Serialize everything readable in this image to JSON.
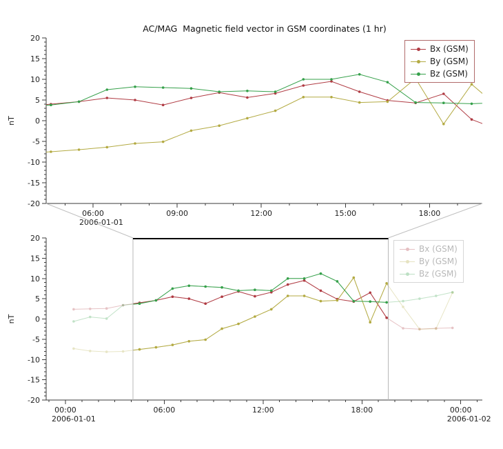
{
  "page": {
    "background": "#ffffff"
  },
  "colors": {
    "axis": "#3a3a3a",
    "tick_label": "#222222",
    "title": "#111111",
    "selection_line": "#b8b8b8",
    "selection_top": "#000000",
    "connector": "#c0c0c0",
    "legend_border_top": "#b06a6a",
    "legend_border_bottom": "#d6d6d6"
  },
  "legend": {
    "entries": [
      "Bx (GSM)",
      "By (GSM)",
      "Bz (GSM)"
    ]
  },
  "chart_data": [
    {
      "type": "line",
      "title": "AC/MAG  Magnetic field vector in GSM coordinates (1 hr)",
      "ylabel": "nT",
      "xlim": [
        4.33,
        19.88
      ],
      "ylim": [
        -20,
        20
      ],
      "yticks": [
        -20,
        -15,
        -10,
        -5,
        0,
        5,
        10,
        15,
        20
      ],
      "xticks": [
        {
          "h": 6,
          "label": "06:00",
          "date": "2006-01-01"
        },
        {
          "h": 9,
          "label": "09:00"
        },
        {
          "h": 12,
          "label": "12:00"
        },
        {
          "h": 15,
          "label": "15:00"
        },
        {
          "h": 18,
          "label": "18:00"
        }
      ],
      "x_hours": [
        0.5,
        1.5,
        2.5,
        3.5,
        4.5,
        5.5,
        6.5,
        7.5,
        8.5,
        9.5,
        10.5,
        11.5,
        12.5,
        13.5,
        14.5,
        15.5,
        16.5,
        17.5,
        18.5,
        19.5,
        20.5,
        21.5,
        22.5,
        23.5
      ],
      "series": [
        {
          "key": "bx",
          "name": "Bx (GSM)",
          "color": "#b03b43",
          "values": [
            2.4,
            2.5,
            2.6,
            3.4,
            4.0,
            4.6,
            5.5,
            5.0,
            3.8,
            5.5,
            6.8,
            5.6,
            6.6,
            8.5,
            9.5,
            7.0,
            4.9,
            4.3,
            6.5,
            0.3,
            -2.3,
            -2.5,
            -2.3,
            -2.2
          ]
        },
        {
          "key": "by",
          "name": "By (GSM)",
          "color": "#b3aa42",
          "values": [
            -7.3,
            -7.9,
            -8.1,
            -8.0,
            -7.5,
            -7.0,
            -6.4,
            -5.5,
            -5.1,
            -2.4,
            -1.2,
            0.6,
            2.4,
            5.7,
            5.7,
            4.4,
            4.6,
            10.2,
            -0.8,
            8.8,
            3.0,
            -2.5,
            -2.4,
            6.5
          ]
        },
        {
          "key": "bz",
          "name": "Bz (GSM)",
          "color": "#35a04a",
          "values": [
            -0.6,
            0.5,
            0.1,
            3.4,
            3.8,
            4.6,
            7.5,
            8.2,
            8.0,
            7.8,
            7.0,
            7.2,
            7.0,
            10.0,
            10.0,
            11.2,
            9.3,
            4.4,
            4.3,
            4.1,
            4.4,
            5.0,
            5.7,
            6.6
          ]
        }
      ]
    },
    {
      "type": "line",
      "title": "",
      "ylabel": "nT",
      "xlim": [
        -1.17,
        25.31
      ],
      "ylim": [
        -20,
        20
      ],
      "yticks": [
        -20,
        -15,
        -10,
        -5,
        0,
        5,
        10,
        15,
        20
      ],
      "xticks": [
        {
          "h": 0,
          "label": "00:00",
          "date": "2006-01-01"
        },
        {
          "h": 6,
          "label": "06:00"
        },
        {
          "h": 12,
          "label": "12:00"
        },
        {
          "h": 18,
          "label": "18:00"
        },
        {
          "h": 24,
          "label": "00:00",
          "date": "2006-01-02"
        }
      ],
      "faded_opacity": 0.3,
      "selection": {
        "from": 4.1,
        "to": 19.6
      },
      "x_hours": [
        0.5,
        1.5,
        2.5,
        3.5,
        4.5,
        5.5,
        6.5,
        7.5,
        8.5,
        9.5,
        10.5,
        11.5,
        12.5,
        13.5,
        14.5,
        15.5,
        16.5,
        17.5,
        18.5,
        19.5,
        20.5,
        21.5,
        22.5,
        23.5
      ],
      "series": [
        {
          "key": "bx",
          "name": "Bx (GSM)",
          "color": "#b03b43",
          "values": [
            2.4,
            2.5,
            2.6,
            3.4,
            4.0,
            4.6,
            5.5,
            5.0,
            3.8,
            5.5,
            6.8,
            5.6,
            6.6,
            8.5,
            9.5,
            7.0,
            4.9,
            4.3,
            6.5,
            0.3,
            -2.3,
            -2.5,
            -2.3,
            -2.2
          ]
        },
        {
          "key": "by",
          "name": "By (GSM)",
          "color": "#b3aa42",
          "values": [
            -7.3,
            -7.9,
            -8.1,
            -8.0,
            -7.5,
            -7.0,
            -6.4,
            -5.5,
            -5.1,
            -2.4,
            -1.2,
            0.6,
            2.4,
            5.7,
            5.7,
            4.4,
            4.6,
            10.2,
            -0.8,
            8.8,
            3.0,
            -2.5,
            -2.4,
            6.5
          ]
        },
        {
          "key": "bz",
          "name": "Bz (GSM)",
          "color": "#35a04a",
          "values": [
            -0.6,
            0.5,
            0.1,
            3.4,
            3.8,
            4.6,
            7.5,
            8.2,
            8.0,
            7.8,
            7.0,
            7.2,
            7.0,
            10.0,
            10.0,
            11.2,
            9.3,
            4.4,
            4.3,
            4.1,
            4.4,
            5.0,
            5.7,
            6.6
          ]
        }
      ]
    }
  ]
}
